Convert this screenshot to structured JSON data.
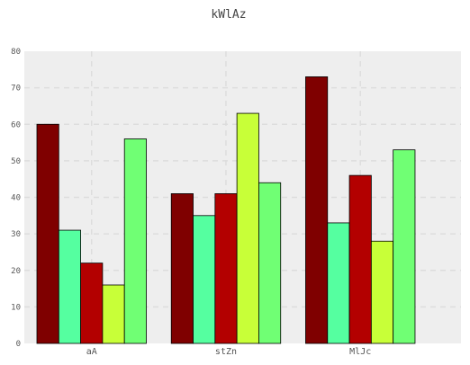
{
  "chart_data": {
    "type": "bar",
    "title": "kWlAz",
    "xlabel": "",
    "ylabel": "",
    "categories": [
      "aA",
      "stZn",
      "MlJc"
    ],
    "series": [
      {
        "values": [
          60,
          41,
          73
        ],
        "color": "#7f0000"
      },
      {
        "values": [
          31,
          35,
          33
        ],
        "color": "#55ffa0"
      },
      {
        "values": [
          22,
          41,
          46
        ],
        "color": "#b30000"
      },
      {
        "values": [
          16,
          63,
          28
        ],
        "color": "#c8ff38"
      },
      {
        "values": [
          56,
          44,
          53
        ],
        "color": "#70ff74"
      }
    ],
    "ylim": [
      0,
      80
    ],
    "yticks": [
      0,
      10,
      20,
      30,
      40,
      50,
      60,
      70,
      80
    ],
    "grid": true,
    "background": "#eeeeee"
  }
}
